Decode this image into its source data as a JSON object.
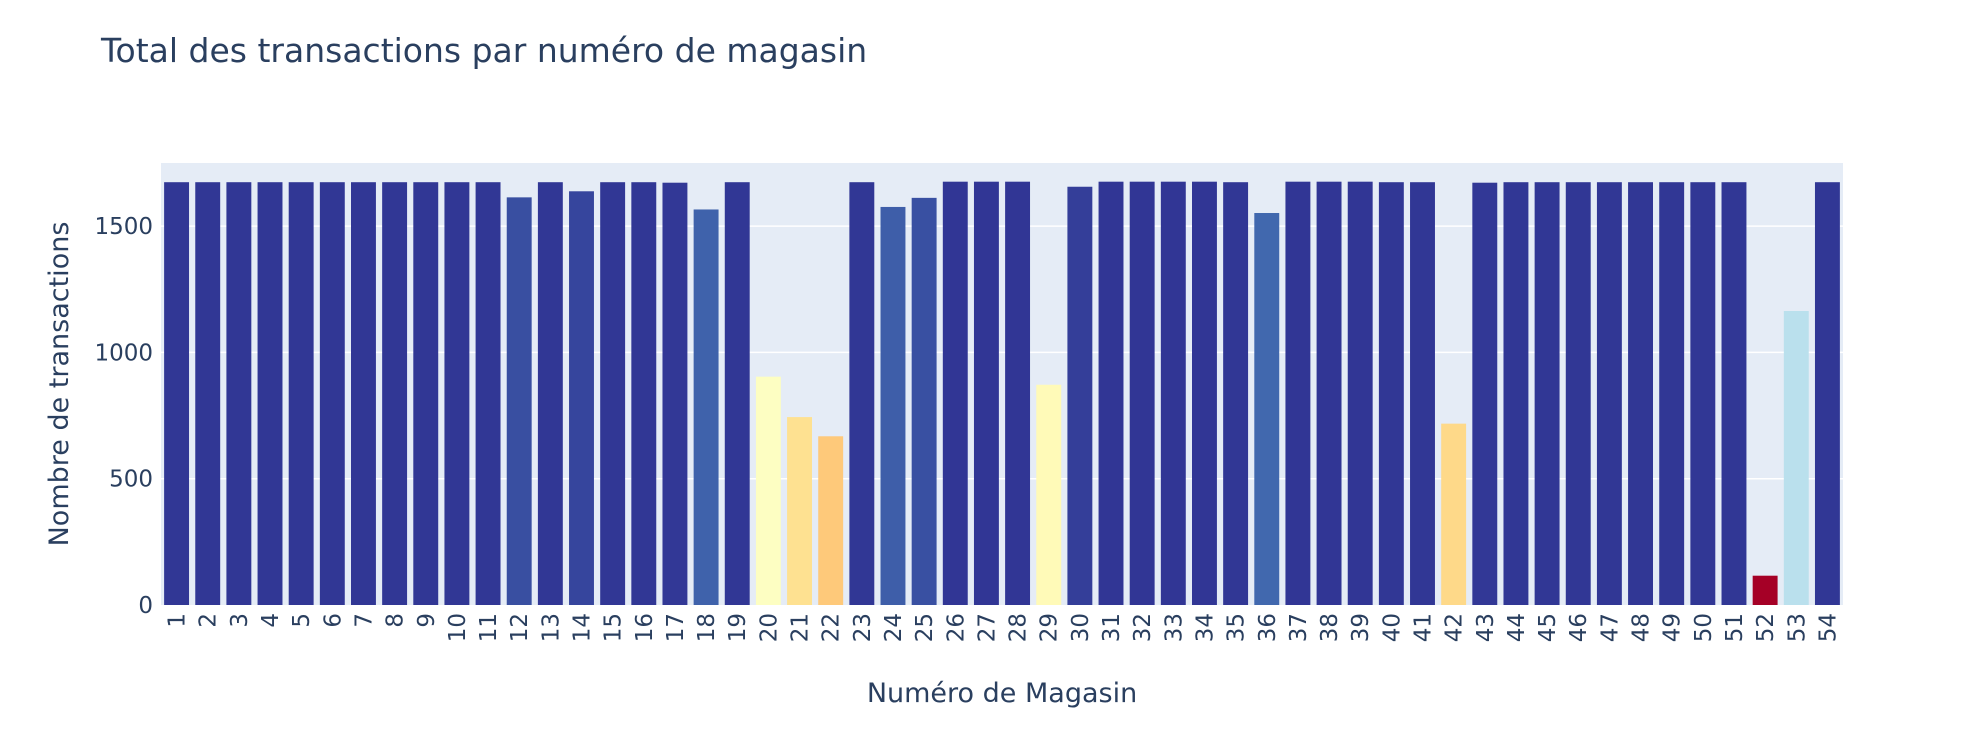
{
  "chart_data": {
    "type": "bar",
    "title": "Total des transactions par numéro de magasin",
    "xlabel": "Numéro de Magasin",
    "ylabel": "Nombre de transactions",
    "ylim": [
      0,
      1750
    ],
    "y_ticks": [
      0,
      500,
      1000,
      1500
    ],
    "grid": true,
    "legend": "none",
    "categories": [
      "1",
      "2",
      "3",
      "4",
      "5",
      "6",
      "7",
      "8",
      "9",
      "10",
      "11",
      "12",
      "13",
      "14",
      "15",
      "16",
      "17",
      "18",
      "19",
      "20",
      "21",
      "22",
      "23",
      "24",
      "25",
      "26",
      "27",
      "28",
      "29",
      "30",
      "31",
      "32",
      "33",
      "34",
      "35",
      "36",
      "37",
      "38",
      "39",
      "40",
      "41",
      "42",
      "43",
      "44",
      "45",
      "46",
      "47",
      "48",
      "49",
      "50",
      "51",
      "52",
      "53",
      "54"
    ],
    "values": [
      1674,
      1674,
      1674,
      1674,
      1674,
      1674,
      1674,
      1674,
      1674,
      1674,
      1674,
      1614,
      1674,
      1638,
      1674,
      1674,
      1672,
      1566,
      1674,
      904,
      744,
      668,
      1674,
      1576,
      1612,
      1676,
      1676,
      1676,
      872,
      1656,
      1676,
      1676,
      1676,
      1676,
      1674,
      1552,
      1676,
      1676,
      1676,
      1674,
      1674,
      718,
      1672,
      1674,
      1674,
      1674,
      1674,
      1674,
      1674,
      1674,
      1674,
      116,
      1164,
      1674
    ],
    "colorscale": "RdYlBu",
    "colorscale_range": [
      116,
      1676
    ],
    "colors": {
      "plot_background": "#e5ecf6",
      "gridline": "#ffffff",
      "text": "#2a3f5f"
    }
  }
}
